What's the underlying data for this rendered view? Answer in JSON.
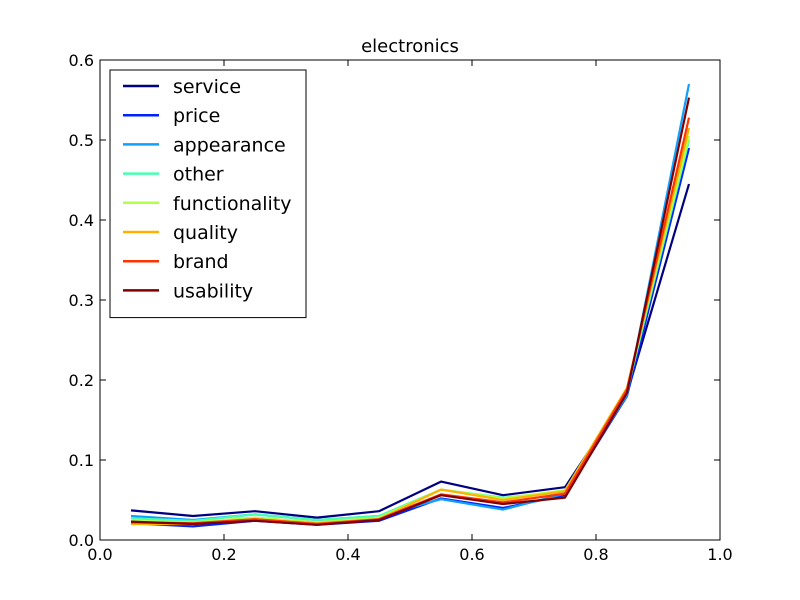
{
  "chart_data": {
    "type": "line",
    "title": "electronics",
    "xlabel": "",
    "ylabel": "",
    "xlim": [
      0.0,
      1.0
    ],
    "ylim": [
      0.0,
      0.6
    ],
    "xticks": [
      0.0,
      0.2,
      0.4,
      0.6,
      0.8,
      1.0
    ],
    "yticks": [
      0.0,
      0.1,
      0.2,
      0.3,
      0.4,
      0.5,
      0.6
    ],
    "xtick_labels": [
      "0.0",
      "0.2",
      "0.4",
      "0.6",
      "0.8",
      "1.0"
    ],
    "ytick_labels": [
      "0.0",
      "0.1",
      "0.2",
      "0.3",
      "0.4",
      "0.5",
      "0.6"
    ],
    "grid": false,
    "legend_position": "top-left",
    "x": [
      0.05,
      0.15,
      0.25,
      0.35,
      0.45,
      0.55,
      0.65,
      0.75,
      0.85,
      0.95
    ],
    "series": [
      {
        "name": "service",
        "color": "#000080",
        "values": [
          0.037,
          0.03,
          0.036,
          0.028,
          0.036,
          0.073,
          0.056,
          0.066,
          0.183,
          0.445
        ]
      },
      {
        "name": "price",
        "color": "#0022ff",
        "values": [
          0.021,
          0.017,
          0.024,
          0.019,
          0.024,
          0.052,
          0.04,
          0.056,
          0.18,
          0.49
        ]
      },
      {
        "name": "appearance",
        "color": "#0f9fff",
        "values": [
          0.03,
          0.025,
          0.032,
          0.025,
          0.03,
          0.051,
          0.038,
          0.058,
          0.181,
          0.57
        ]
      },
      {
        "name": "other",
        "color": "#46ffb1",
        "values": [
          0.027,
          0.024,
          0.032,
          0.025,
          0.03,
          0.063,
          0.053,
          0.06,
          0.186,
          0.5
        ]
      },
      {
        "name": "functionality",
        "color": "#b1ff46",
        "values": [
          0.024,
          0.022,
          0.028,
          0.022,
          0.028,
          0.063,
          0.052,
          0.062,
          0.19,
          0.505
        ]
      },
      {
        "name": "quality",
        "color": "#ffb100",
        "values": [
          0.02,
          0.02,
          0.026,
          0.021,
          0.026,
          0.063,
          0.05,
          0.061,
          0.19,
          0.515
        ]
      },
      {
        "name": "brand",
        "color": "#ff3400",
        "values": [
          0.022,
          0.021,
          0.026,
          0.02,
          0.026,
          0.057,
          0.047,
          0.058,
          0.188,
          0.528
        ]
      },
      {
        "name": "usability",
        "color": "#800000",
        "values": [
          0.023,
          0.02,
          0.024,
          0.019,
          0.025,
          0.056,
          0.045,
          0.053,
          0.184,
          0.553
        ]
      }
    ]
  }
}
